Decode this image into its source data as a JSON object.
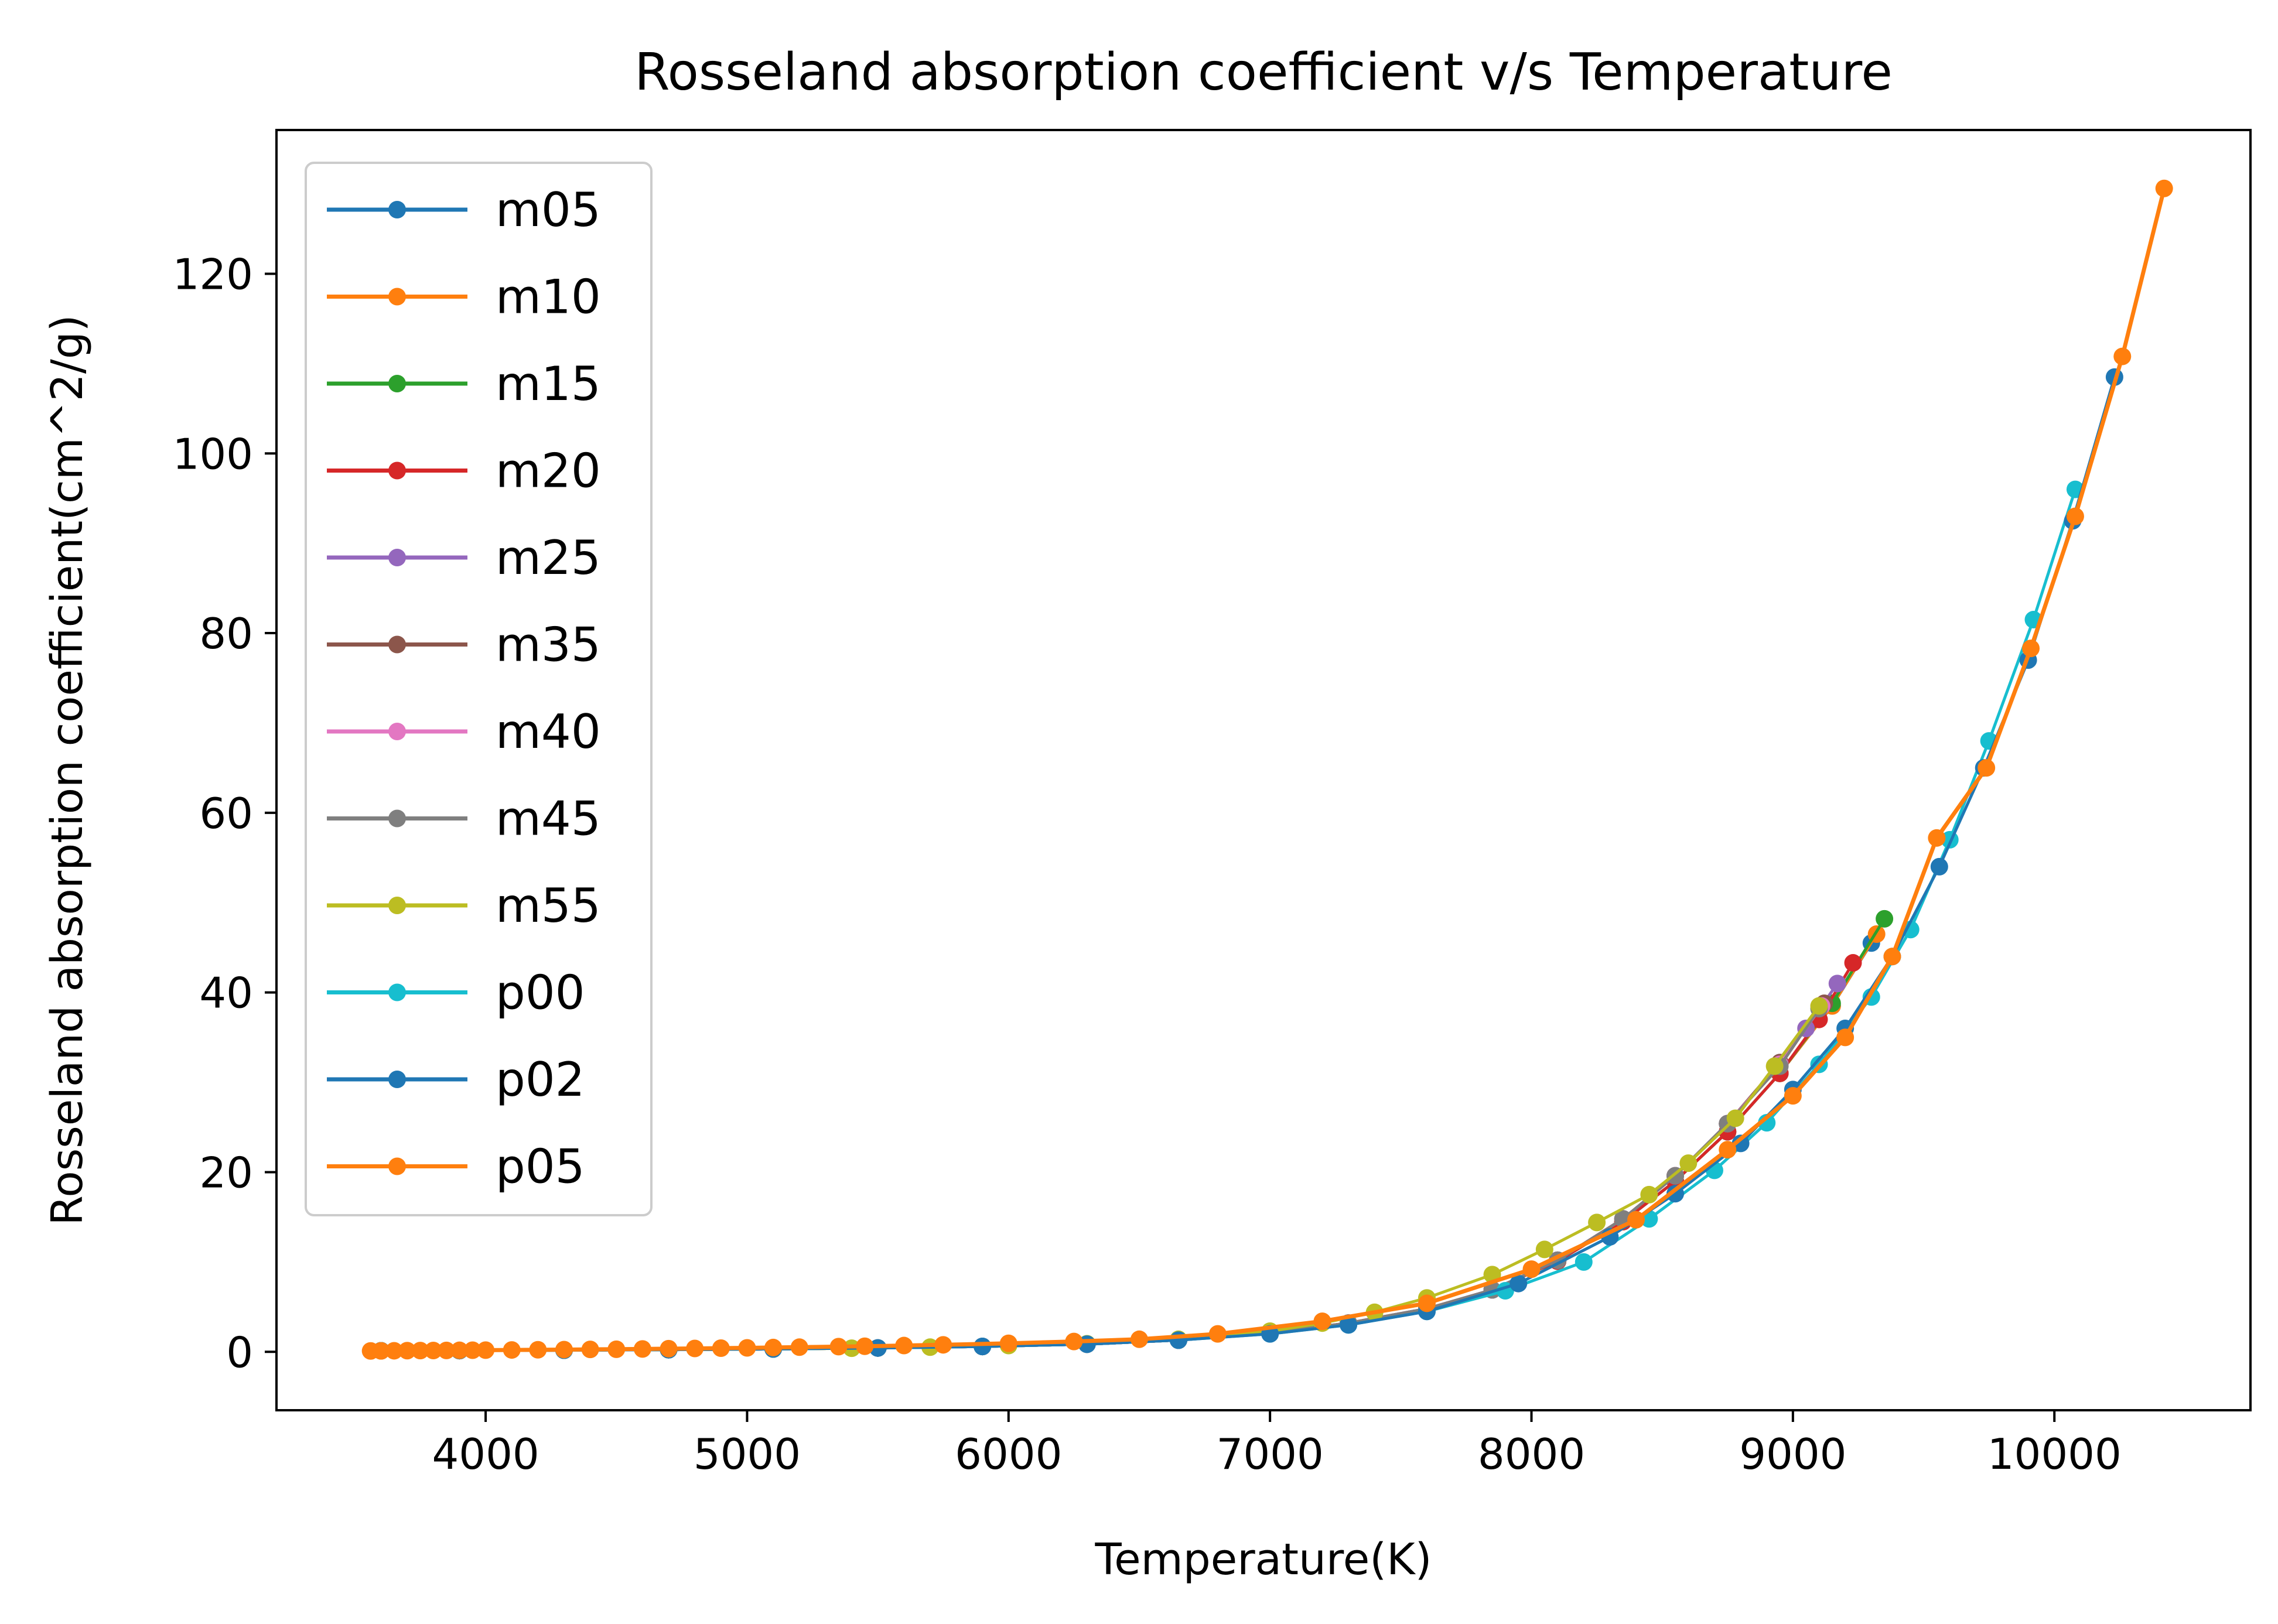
{
  "chart_data": {
    "type": "line",
    "title": "Rosseland absorption coefficient v/s Temperature",
    "xlabel": "Temperature(K)",
    "ylabel": "Rosseland absorption coefficient(cm^2/g)",
    "xlim": [
      3200,
      10750
    ],
    "ylim": [
      -6.5,
      136
    ],
    "xticks": [
      4000,
      5000,
      6000,
      7000,
      8000,
      9000,
      10000
    ],
    "yticks": [
      0,
      20,
      40,
      60,
      80,
      100,
      120
    ],
    "grid": false,
    "legend_position": "upper-left",
    "series": [
      {
        "name": "m05",
        "color": "#1f77b4",
        "x": [
          3600,
          3900,
          4300,
          4700,
          5100,
          5500,
          5900,
          6300,
          6650,
          7000,
          7300,
          7600,
          7850,
          8100,
          8350,
          8550,
          8750,
          8950,
          9150,
          9300
        ],
        "y": [
          0.12,
          0.14,
          0.18,
          0.24,
          0.32,
          0.43,
          0.6,
          0.85,
          1.3,
          2.1,
          3.2,
          4.8,
          6.9,
          10.1,
          14.5,
          19.0,
          24.5,
          31.0,
          38.5,
          45.5
        ]
      },
      {
        "name": "m10",
        "color": "#ff7f0e",
        "x": [
          3600,
          3900,
          4300,
          4700,
          5100,
          5500,
          5900,
          6300,
          6650,
          7000,
          7300,
          7600,
          7850,
          8100,
          8350,
          8550,
          8750,
          8950,
          9150,
          9320
        ],
        "y": [
          0.12,
          0.14,
          0.18,
          0.24,
          0.32,
          0.43,
          0.6,
          0.85,
          1.3,
          2.1,
          3.2,
          4.8,
          6.9,
          10.1,
          14.5,
          19.0,
          24.5,
          31.0,
          38.5,
          46.5
        ]
      },
      {
        "name": "m15",
        "color": "#2ca02c",
        "x": [
          3600,
          3900,
          4300,
          4700,
          5100,
          5500,
          5900,
          6300,
          6650,
          7000,
          7300,
          7600,
          7850,
          8100,
          8350,
          8550,
          8750,
          8950,
          9150,
          9350
        ],
        "y": [
          0.12,
          0.14,
          0.18,
          0.24,
          0.32,
          0.43,
          0.6,
          0.85,
          1.3,
          2.1,
          3.2,
          4.8,
          6.9,
          10.1,
          14.5,
          19.0,
          24.5,
          31.0,
          38.8,
          48.2
        ]
      },
      {
        "name": "m20",
        "color": "#d62728",
        "x": [
          3600,
          3900,
          4300,
          4700,
          5100,
          5500,
          5900,
          6300,
          6650,
          7000,
          7300,
          7600,
          7850,
          8100,
          8350,
          8550,
          8750,
          8950,
          9100,
          9230
        ],
        "y": [
          0.12,
          0.14,
          0.18,
          0.24,
          0.32,
          0.43,
          0.6,
          0.85,
          1.3,
          2.1,
          3.2,
          4.8,
          6.9,
          10.1,
          14.5,
          19.0,
          24.5,
          31.0,
          37.0,
          43.3
        ]
      },
      {
        "name": "m25",
        "color": "#9467bd",
        "x": [
          3600,
          3900,
          4300,
          4700,
          5100,
          5500,
          5900,
          6300,
          6650,
          7000,
          7300,
          7600,
          7850,
          8100,
          8350,
          8550,
          8750,
          8950,
          9050,
          9170
        ],
        "y": [
          0.12,
          0.14,
          0.18,
          0.24,
          0.32,
          0.43,
          0.6,
          0.85,
          1.3,
          2.1,
          3.2,
          4.8,
          6.9,
          10.2,
          14.8,
          19.6,
          25.4,
          32.2,
          36.0,
          41.0
        ]
      },
      {
        "name": "m35",
        "color": "#8c564b",
        "x": [
          3600,
          3900,
          4300,
          4700,
          5100,
          5500,
          5900,
          6300,
          6650,
          7000,
          7300,
          7600,
          7850,
          8100,
          8350,
          8550,
          8750,
          8950,
          9120
        ],
        "y": [
          0.12,
          0.14,
          0.18,
          0.24,
          0.32,
          0.43,
          0.6,
          0.85,
          1.3,
          2.1,
          3.2,
          4.8,
          6.9,
          10.2,
          14.8,
          19.6,
          25.4,
          32.2,
          38.8
        ]
      },
      {
        "name": "m40",
        "color": "#e377c2",
        "x": [
          3600,
          3900,
          4300,
          4700,
          5100,
          5500,
          5900,
          6300,
          6650,
          7000,
          7300,
          7600,
          7850,
          8100,
          8350,
          8550,
          8750,
          8950,
          9110
        ],
        "y": [
          0.12,
          0.14,
          0.18,
          0.24,
          0.32,
          0.43,
          0.6,
          0.85,
          1.3,
          2.1,
          3.2,
          4.8,
          6.9,
          10.2,
          14.8,
          19.6,
          25.4,
          32.0,
          38.5
        ]
      },
      {
        "name": "m45",
        "color": "#7f7f7f",
        "x": [
          3600,
          3900,
          4300,
          4700,
          5100,
          5500,
          5900,
          6300,
          6650,
          7000,
          7300,
          7600,
          7850,
          8100,
          8350,
          8550,
          8750,
          8950,
          9100
        ],
        "y": [
          0.12,
          0.14,
          0.18,
          0.24,
          0.32,
          0.43,
          0.6,
          0.85,
          1.3,
          2.1,
          3.2,
          4.8,
          6.9,
          10.2,
          14.8,
          19.6,
          25.4,
          31.8,
          38.2
        ]
      },
      {
        "name": "m55",
        "color": "#bcbd22",
        "x": [
          3600,
          3900,
          4300,
          4700,
          5100,
          5400,
          5700,
          6000,
          6300,
          6650,
          7000,
          7200,
          7400,
          7600,
          7850,
          8050,
          8250,
          8450,
          8600,
          8780,
          8930,
          9100
        ],
        "y": [
          0.12,
          0.14,
          0.18,
          0.24,
          0.32,
          0.4,
          0.52,
          0.7,
          0.9,
          1.4,
          2.3,
          3.2,
          4.4,
          6.0,
          8.6,
          11.4,
          14.4,
          17.5,
          21.0,
          26.0,
          31.8,
          38.5
        ]
      },
      {
        "name": "p00",
        "color": "#17becf",
        "x": [
          3600,
          3900,
          4300,
          4700,
          5100,
          5500,
          5900,
          6300,
          6650,
          7000,
          7300,
          7600,
          7900,
          8200,
          8450,
          8700,
          8900,
          9100,
          9300,
          9450,
          9600,
          9750,
          9920,
          10080
        ],
        "y": [
          0.12,
          0.14,
          0.18,
          0.24,
          0.32,
          0.43,
          0.6,
          0.85,
          1.3,
          2.0,
          3.0,
          4.5,
          6.8,
          10.0,
          14.8,
          20.2,
          25.5,
          32.0,
          39.5,
          47.0,
          57.0,
          68.0,
          81.5,
          96.0
        ]
      },
      {
        "name": "p02",
        "color": "#1f77b4",
        "x": [
          3600,
          3900,
          4300,
          4700,
          5100,
          5500,
          5900,
          6300,
          6650,
          7000,
          7300,
          7600,
          7950,
          8300,
          8550,
          8800,
          9000,
          9200,
          9380,
          9560,
          9730,
          9900,
          10070,
          10230
        ],
        "y": [
          0.12,
          0.14,
          0.18,
          0.24,
          0.32,
          0.43,
          0.6,
          0.85,
          1.3,
          2.0,
          3.0,
          4.5,
          7.6,
          12.8,
          17.6,
          23.2,
          29.2,
          36.0,
          44.0,
          54.0,
          65.0,
          77.0,
          92.5,
          108.5
        ]
      },
      {
        "name": "p05",
        "color": "#ff7f0e",
        "x": [
          3560,
          3600,
          3650,
          3700,
          3750,
          3800,
          3850,
          3900,
          3950,
          4000,
          4100,
          4200,
          4300,
          4400,
          4500,
          4600,
          4700,
          4800,
          4900,
          5000,
          5100,
          5200,
          5350,
          5450,
          5600,
          5750,
          6000,
          6250,
          6500,
          6800,
          7200,
          7600,
          8000,
          8400,
          8750,
          9000,
          9200,
          9380,
          9550,
          9740,
          9910,
          10080,
          10260,
          10420
        ],
        "y": [
          0.1,
          0.11,
          0.12,
          0.13,
          0.14,
          0.15,
          0.16,
          0.17,
          0.18,
          0.19,
          0.21,
          0.23,
          0.25,
          0.27,
          0.29,
          0.32,
          0.35,
          0.38,
          0.41,
          0.44,
          0.48,
          0.52,
          0.58,
          0.62,
          0.7,
          0.78,
          0.95,
          1.15,
          1.4,
          2.0,
          3.4,
          5.4,
          9.2,
          14.7,
          22.5,
          28.5,
          35.0,
          44.0,
          57.2,
          65.0,
          78.3,
          93.0,
          110.8,
          129.5
        ]
      }
    ]
  }
}
